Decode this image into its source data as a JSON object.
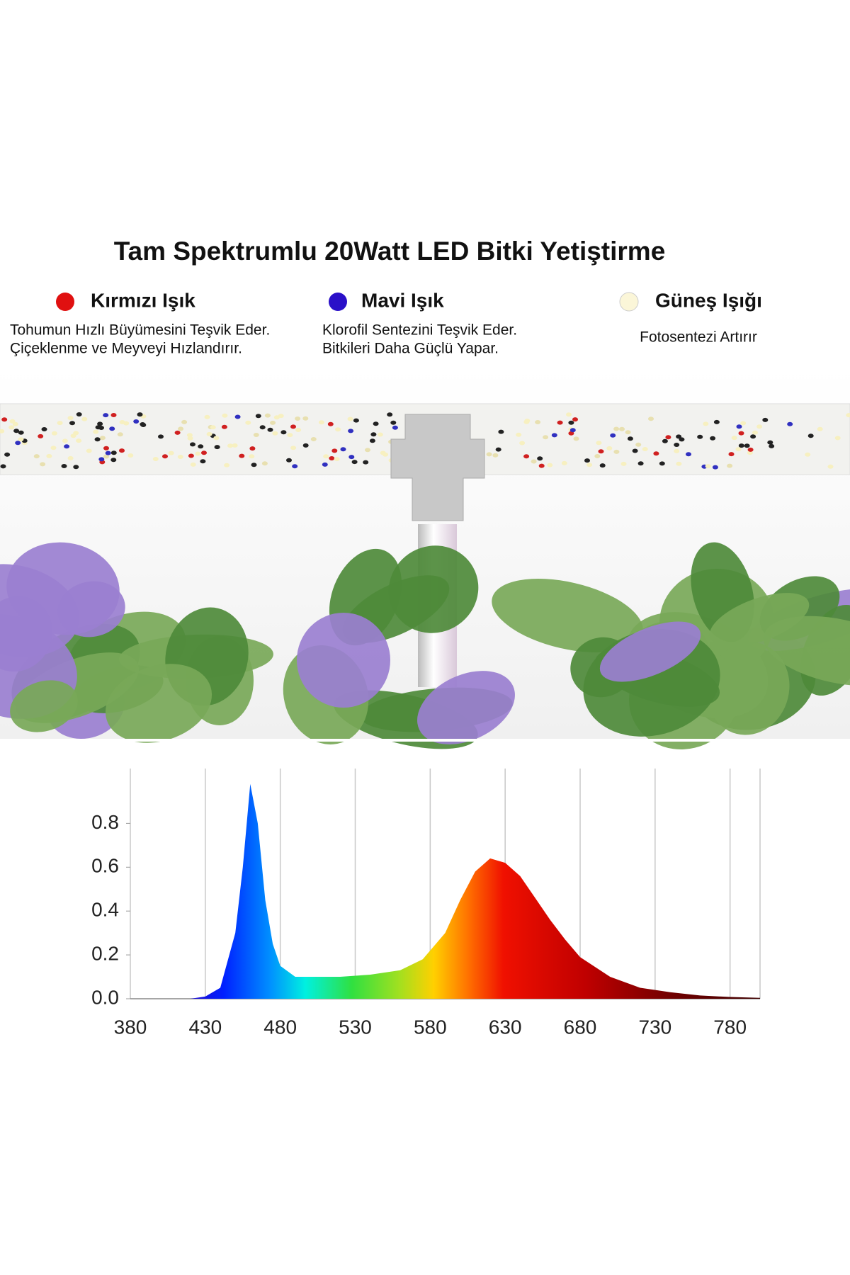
{
  "title": "Tam Spektrumlu 20Watt LED Bitki Yetiştirme",
  "features": [
    {
      "name": "Kırmızı Işık",
      "color": "#e01010",
      "lines": [
        "Tohumun Hızlı Büyümesini Teşvik Eder.",
        "Çiçeklenme ve Meyveyi Hızlandırır."
      ]
    },
    {
      "name": "Mavi Işık",
      "color": "#2a10c8",
      "lines": [
        "Klorofil Sentezini Teşvik Eder.",
        "Bitkileri Daha Güçlü Yapar."
      ]
    },
    {
      "name": "Güneş Işığı",
      "color": "#fbf6d8",
      "lines": [
        "Fotosentezi Artırır"
      ]
    }
  ],
  "chart_data": {
    "type": "area",
    "x": [
      420,
      430,
      440,
      450,
      455,
      460,
      465,
      470,
      475,
      480,
      490,
      500,
      520,
      540,
      560,
      575,
      590,
      600,
      610,
      620,
      630,
      640,
      650,
      660,
      670,
      680,
      700,
      720,
      740,
      760,
      780,
      800
    ],
    "values": [
      0,
      0.01,
      0.05,
      0.3,
      0.6,
      0.98,
      0.8,
      0.45,
      0.25,
      0.15,
      0.1,
      0.1,
      0.1,
      0.11,
      0.13,
      0.18,
      0.3,
      0.45,
      0.58,
      0.64,
      0.62,
      0.56,
      0.46,
      0.36,
      0.27,
      0.19,
      0.1,
      0.05,
      0.03,
      0.015,
      0.008,
      0.004
    ],
    "xlim": [
      380,
      800
    ],
    "ylim": [
      0,
      1.05
    ],
    "xticks": [
      380,
      430,
      480,
      530,
      580,
      630,
      680,
      730,
      780
    ],
    "yticks": [
      {
        "value": 0,
        "label": "0.0"
      },
      0.2,
      0.4,
      0.6,
      0.8
    ],
    "grid": true
  }
}
